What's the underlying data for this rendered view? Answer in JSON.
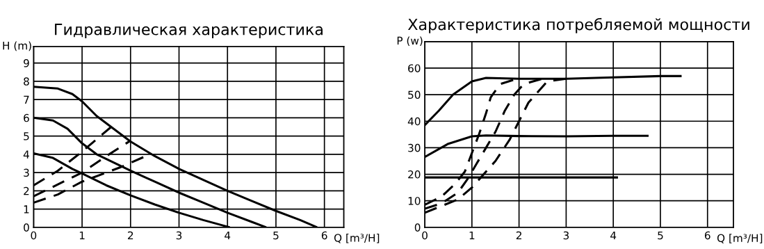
{
  "chart_data": [
    {
      "type": "line",
      "title": "Гидравлическая характеристика",
      "xlabel": "Q [m³/H]",
      "ylabel": "H (m)",
      "xlim": [
        0,
        6.4
      ],
      "ylim": [
        0,
        9.9
      ],
      "xticks": [
        0,
        1,
        2,
        3,
        4,
        5,
        6
      ],
      "yticks": [
        0,
        1,
        2,
        3,
        4,
        5,
        6,
        7,
        8,
        9
      ],
      "grid": true,
      "marker": "none",
      "series": [
        {
          "color": "#000000",
          "line_style": "solid",
          "x": [
            0,
            0.5,
            0.8,
            1,
            1.3,
            1.6,
            2,
            2.5,
            3,
            3.5,
            4,
            4.5,
            5,
            5.5,
            5.85
          ],
          "values": [
            7.7,
            7.6,
            7.3,
            6.9,
            6.1,
            5.5,
            4.7,
            3.9,
            3.2,
            2.6,
            2.0,
            1.45,
            0.9,
            0.4,
            0
          ]
        },
        {
          "color": "#000000",
          "line_style": "solid",
          "x": [
            0,
            0.4,
            0.7,
            1,
            1.3,
            2,
            2.5,
            3,
            3.5,
            4,
            4.5,
            4.8
          ],
          "values": [
            6,
            5.85,
            5.4,
            4.6,
            4.0,
            3.1,
            2.5,
            1.9,
            1.35,
            0.8,
            0.3,
            0
          ]
        },
        {
          "color": "#000000",
          "line_style": "solid",
          "x": [
            0,
            0.4,
            0.8,
            1,
            1.5,
            2,
            2.5,
            3,
            3.5,
            4.05
          ],
          "values": [
            4.05,
            3.8,
            3.2,
            2.95,
            2.3,
            1.75,
            1.25,
            0.8,
            0.4,
            0
          ]
        },
        {
          "color": "#000000",
          "line_style": "dashed",
          "x": [
            0,
            0.5,
            1,
            1.6
          ],
          "values": [
            2.3,
            3.1,
            4.15,
            5.5
          ]
        },
        {
          "color": "#000000",
          "line_style": "dashed",
          "x": [
            0,
            1,
            1.5,
            2
          ],
          "values": [
            1.7,
            3.0,
            3.9,
            4.75
          ]
        },
        {
          "color": "#000000",
          "line_style": "dashed",
          "x": [
            0,
            0.5,
            1,
            1.8,
            2.4
          ],
          "values": [
            1.35,
            1.8,
            2.5,
            3.3,
            4.0
          ]
        }
      ]
    },
    {
      "type": "line",
      "title": "Характеристика потребляемой мощности",
      "xlabel": "Q [m³/H]",
      "ylabel": "P (w)",
      "xlim": [
        0,
        6.55
      ],
      "ylim": [
        0,
        70
      ],
      "xticks": [
        0,
        1,
        2,
        3,
        4,
        5,
        6
      ],
      "yticks": [
        0,
        10,
        20,
        30,
        40,
        50,
        60,
        {
          "value": 70,
          "label": null
        }
      ],
      "grid": true,
      "marker": "none",
      "series": [
        {
          "color": "#000000",
          "line_style": "solid",
          "x": [
            0,
            0.3,
            0.6,
            1,
            1.3,
            2,
            3,
            4,
            5,
            5.45
          ],
          "values": [
            38.5,
            44,
            50,
            55,
            56.3,
            56,
            56,
            56.5,
            57,
            57
          ]
        },
        {
          "color": "#000000",
          "line_style": "solid",
          "x": [
            0,
            0.5,
            1,
            1.3,
            2,
            3,
            4,
            4.75
          ],
          "values": [
            26.5,
            31.5,
            34.3,
            34.6,
            34.4,
            34.3,
            34.5,
            34.5
          ]
        },
        {
          "color": "#000000",
          "line_style": "solid",
          "x": [
            0,
            4.1
          ],
          "values": [
            18.8,
            18.8
          ]
        },
        {
          "color": "#000000",
          "line_style": "dashed",
          "x": [
            0,
            0.35,
            0.65,
            0.85,
            1,
            1.15,
            1.3,
            1.4,
            1.6,
            2
          ],
          "values": [
            8.5,
            11.5,
            16.5,
            21,
            28,
            35,
            43,
            49,
            54,
            56.2
          ]
        },
        {
          "color": "#000000",
          "line_style": "dashed",
          "x": [
            0,
            0.35,
            0.7,
            0.9,
            1.1,
            1.3,
            1.5,
            1.7,
            1.9,
            2.1,
            2.5
          ],
          "values": [
            7,
            9,
            13,
            18,
            24,
            30,
            36,
            44,
            50,
            54,
            56
          ]
        },
        {
          "color": "#000000",
          "line_style": "dashed",
          "x": [
            0,
            0.35,
            0.7,
            1,
            1.2,
            1.5,
            1.8,
            2,
            2.2,
            2.4,
            2.6,
            3
          ],
          "values": [
            5.5,
            8,
            10.5,
            15,
            19,
            25,
            33,
            40,
            47,
            51,
            55,
            56
          ]
        }
      ]
    }
  ]
}
